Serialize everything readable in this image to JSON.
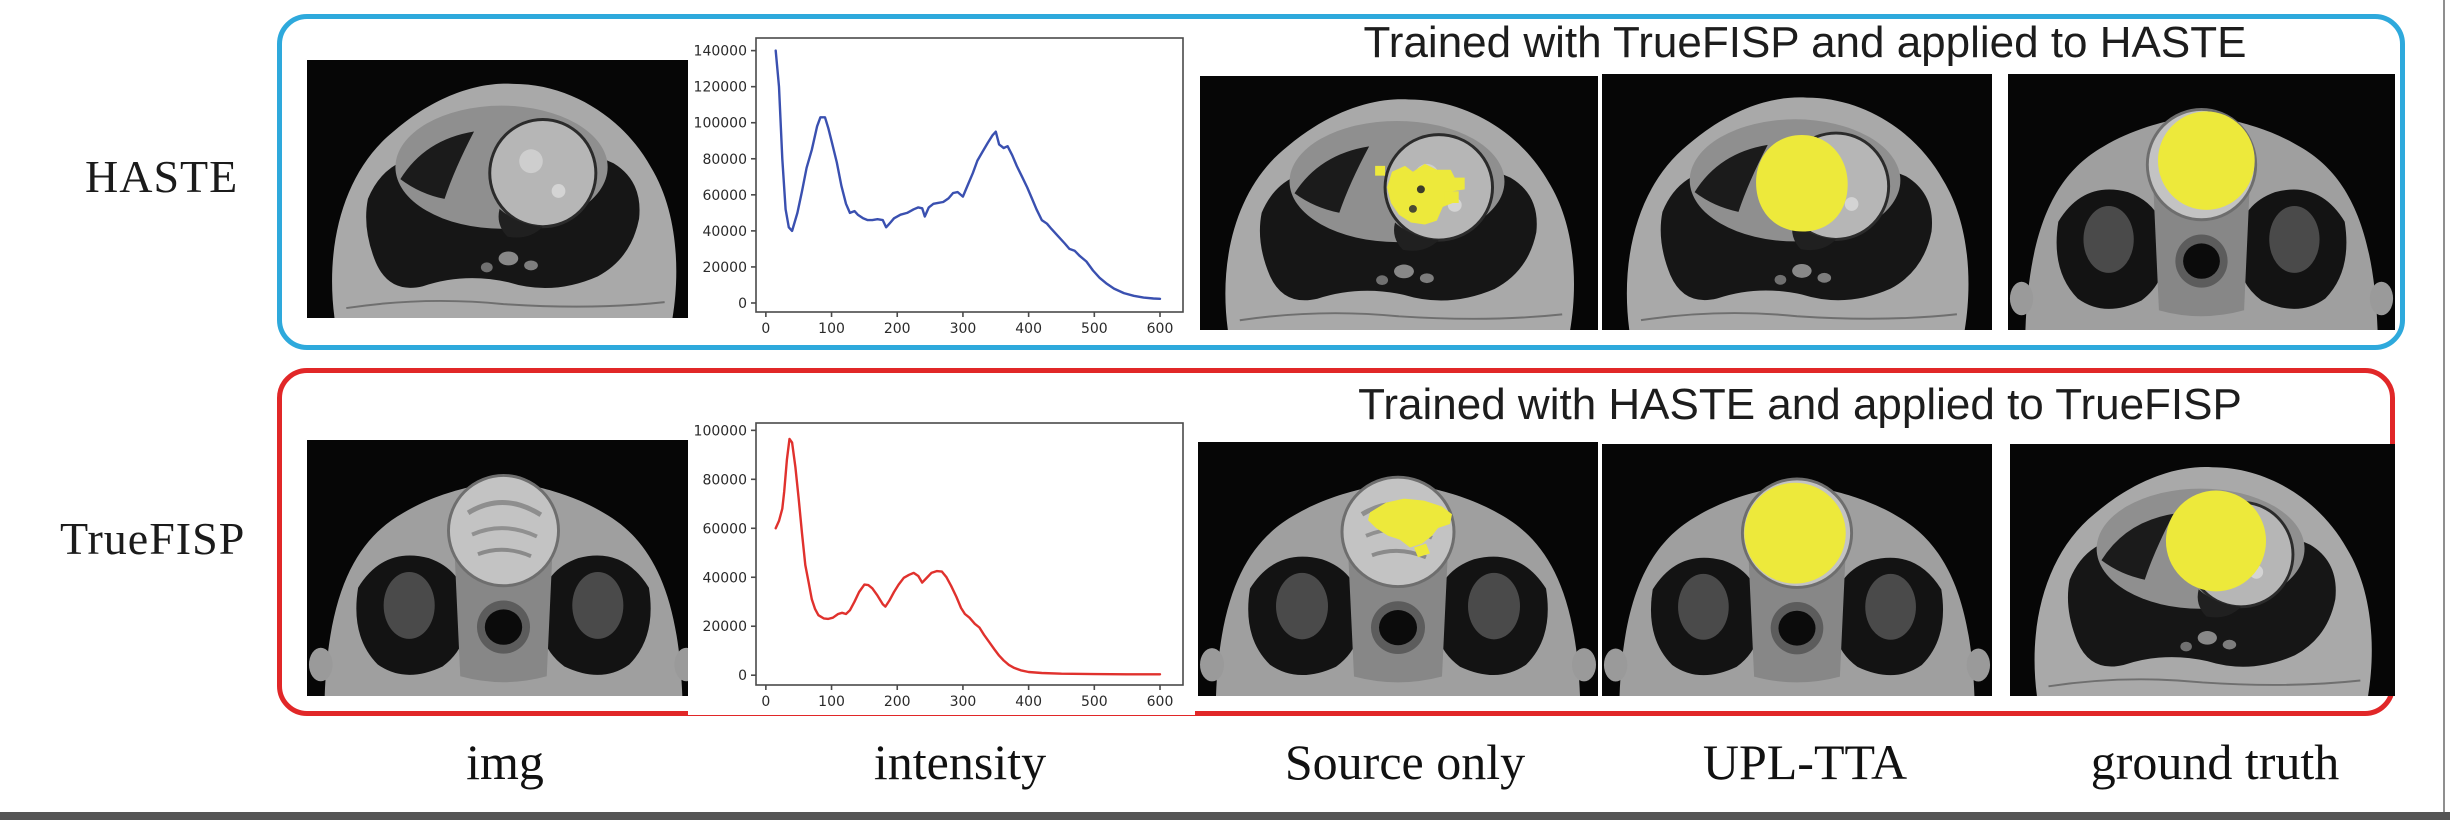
{
  "figure": {
    "rows": [
      {
        "row_label": "HASTE",
        "box_color": "#2EA9DC",
        "title": "Trained with TrueFISP and applied to HASTE"
      },
      {
        "row_label": "TrueFISP",
        "box_color": "#E12728",
        "title": "Trained with HASTE and applied to TrueFISP"
      }
    ],
    "column_captions": [
      "img",
      "intensity",
      "Source only",
      "UPL-TTA",
      "ground truth"
    ],
    "colors": {
      "haste_box": "#2EA9DC",
      "truefisp_box": "#E12728",
      "segmentation_yellow": "#EDE93B",
      "haste_curve": "#3A50B0",
      "truefisp_curve": "#E0312D"
    }
  },
  "chart_data": [
    {
      "type": "line",
      "title": "",
      "xlabel": "",
      "ylabel": "",
      "legend": "none",
      "grid": false,
      "line_color": "#3A50B0",
      "xlim": [
        -15,
        635
      ],
      "ylim": [
        -5000,
        147000
      ],
      "xticks": [
        0,
        100,
        200,
        300,
        400,
        500,
        600
      ],
      "yticks": [
        0,
        20000,
        40000,
        60000,
        80000,
        100000,
        120000,
        140000
      ],
      "x": [
        15,
        20,
        25,
        30,
        35,
        40,
        48,
        55,
        62,
        70,
        78,
        83,
        90,
        95,
        100,
        108,
        115,
        122,
        128,
        135,
        140,
        148,
        155,
        162,
        170,
        178,
        183,
        188,
        195,
        205,
        215,
        225,
        232,
        238,
        242,
        248,
        255,
        262,
        270,
        278,
        285,
        292,
        300,
        308,
        315,
        322,
        330,
        338,
        345,
        350,
        355,
        362,
        368,
        375,
        382,
        390,
        398,
        405,
        412,
        420,
        428,
        435,
        445,
        455,
        462,
        470,
        478,
        488,
        498,
        508,
        518,
        530,
        545,
        560,
        575,
        590,
        600
      ],
      "y": [
        140000,
        120000,
        80000,
        52000,
        42000,
        40000,
        50000,
        62000,
        75000,
        85000,
        98000,
        103000,
        103000,
        97000,
        90000,
        78000,
        65000,
        55000,
        50000,
        51000,
        49000,
        47000,
        46000,
        46000,
        46500,
        46000,
        42000,
        44000,
        47000,
        49000,
        50000,
        52000,
        53000,
        52500,
        48000,
        53000,
        55000,
        55500,
        56000,
        58000,
        61000,
        61500,
        59000,
        66000,
        72000,
        79000,
        84000,
        89000,
        93000,
        95000,
        88000,
        86000,
        87000,
        82000,
        76000,
        70000,
        64000,
        58000,
        52000,
        46000,
        44000,
        41000,
        37000,
        33000,
        30000,
        29000,
        26000,
        23000,
        18000,
        14000,
        11000,
        8000,
        5500,
        4000,
        3000,
        2500,
        2300
      ]
    },
    {
      "type": "line",
      "title": "",
      "xlabel": "",
      "ylabel": "",
      "legend": "none",
      "grid": false,
      "line_color": "#E0312D",
      "xlim": [
        -15,
        635
      ],
      "ylim": [
        -4000,
        103000
      ],
      "xticks": [
        0,
        100,
        200,
        300,
        400,
        500,
        600
      ],
      "yticks": [
        0,
        20000,
        40000,
        60000,
        80000,
        100000
      ],
      "x": [
        15,
        20,
        25,
        28,
        32,
        36,
        40,
        45,
        50,
        55,
        60,
        65,
        70,
        75,
        80,
        88,
        95,
        102,
        110,
        116,
        122,
        128,
        135,
        142,
        150,
        156,
        162,
        170,
        178,
        182,
        188,
        195,
        202,
        210,
        218,
        225,
        232,
        238,
        244,
        252,
        260,
        268,
        275,
        282,
        290,
        297,
        303,
        310,
        318,
        325,
        332,
        340,
        348,
        355,
        362,
        370,
        378,
        388,
        400,
        420,
        450,
        500,
        550,
        600
      ],
      "y": [
        60000,
        63000,
        68000,
        75000,
        88000,
        96500,
        95000,
        85000,
        72000,
        58000,
        45000,
        38000,
        31000,
        27000,
        24500,
        23200,
        23000,
        23500,
        25000,
        25500,
        25000,
        26500,
        30000,
        34000,
        37000,
        36800,
        35500,
        32500,
        29000,
        28000,
        30500,
        34000,
        37000,
        39800,
        41000,
        41800,
        40500,
        37800,
        39500,
        41800,
        42500,
        42300,
        40000,
        36500,
        32000,
        27500,
        25000,
        23500,
        21000,
        19500,
        16500,
        13500,
        10500,
        8000,
        6000,
        4200,
        3000,
        2000,
        1300,
        900,
        600,
        450,
        380,
        350
      ]
    }
  ]
}
